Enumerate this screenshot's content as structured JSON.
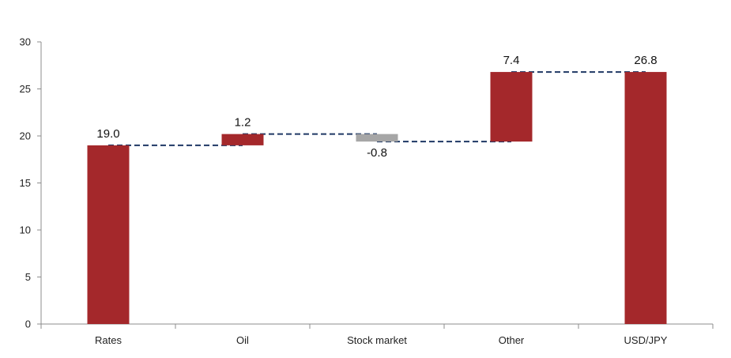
{
  "chart_data": {
    "type": "bar",
    "subtype": "waterfall",
    "title": "",
    "xlabel": "",
    "ylabel": "",
    "ylim": [
      0,
      30
    ],
    "yticks": [
      0,
      5,
      10,
      15,
      20,
      25,
      30
    ],
    "categories": [
      "Rates",
      "Oil",
      "Stock market",
      "Other",
      "USD/JPY"
    ],
    "values": [
      19.0,
      1.2,
      -0.8,
      7.4,
      26.8
    ],
    "bar_kind": [
      "total",
      "delta",
      "delta",
      "delta",
      "total"
    ],
    "data_labels": [
      "19.0",
      "1.2",
      "-0.8",
      "7.4",
      "26.8"
    ],
    "grid": false,
    "colors": {
      "positive": "#a4282b",
      "negative": "#a6a6a6",
      "connector": "#1f3864",
      "axis": "#8c8c8c"
    }
  }
}
